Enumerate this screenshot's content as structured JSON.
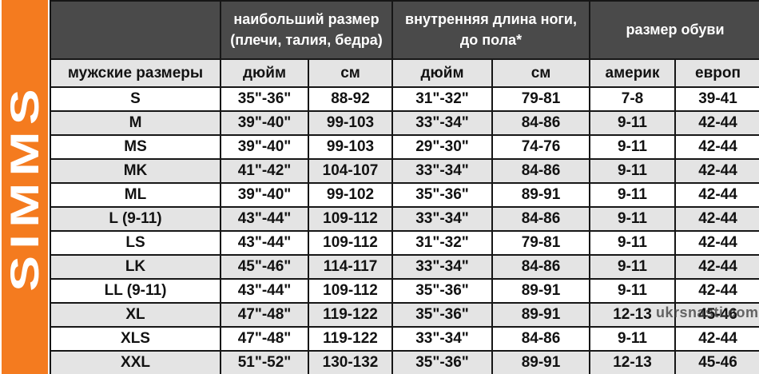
{
  "brand": {
    "logo_text": "SIMMS"
  },
  "watermark": "ukrsnasti.com",
  "colors": {
    "orange": "#f47b1f",
    "header_bg": "#4a4a4a",
    "header_text": "#ffffff",
    "row_alt_bg": "#e4e4e4",
    "row_bg": "#ffffff",
    "border": "#161616",
    "text": "#121212",
    "watermark_color": "#3e3e3e"
  },
  "table": {
    "group_headers": [
      {
        "label": "наибольший размер (плечи, талия, бедра)"
      },
      {
        "label": "внутренняя длина ноги, до пола*"
      },
      {
        "label": "размер обуви"
      }
    ],
    "sub_headers": [
      "мужские размеры",
      "дюйм",
      "см",
      "дюйм",
      "см",
      "америк",
      "европ"
    ],
    "rows": [
      [
        "S",
        "35\"-36\"",
        "88-92",
        "31\"-32\"",
        "79-81",
        "7-8",
        "39-41"
      ],
      [
        "M",
        "39\"-40\"",
        "99-103",
        "33\"-34\"",
        "84-86",
        "9-11",
        "42-44"
      ],
      [
        "MS",
        "39\"-40\"",
        "99-103",
        "29\"-30\"",
        "74-76",
        "9-11",
        "42-44"
      ],
      [
        "MK",
        "41\"-42\"",
        "104-107",
        "33\"-34\"",
        "84-86",
        "9-11",
        "42-44"
      ],
      [
        "ML",
        "39\"-40\"",
        "99-102",
        "35\"-36\"",
        "89-91",
        "9-11",
        "42-44"
      ],
      [
        "L (9-11)",
        "43\"-44\"",
        "109-112",
        "33\"-34\"",
        "84-86",
        "9-11",
        "42-44"
      ],
      [
        "LS",
        "43\"-44\"",
        "109-112",
        "31\"-32\"",
        "79-81",
        "9-11",
        "42-44"
      ],
      [
        "LK",
        "45\"-46\"",
        "114-117",
        "33\"-34\"",
        "84-86",
        "9-11",
        "42-44"
      ],
      [
        "LL (9-11)",
        "43\"-44\"",
        "109-112",
        "35\"-36\"",
        "89-91",
        "9-11",
        "42-44"
      ],
      [
        "XL",
        "47\"-48\"",
        "119-122",
        "35\"-36\"",
        "89-91",
        "12-13",
        "45-46"
      ],
      [
        "XLS",
        "47\"-48\"",
        "119-122",
        "33\"-34\"",
        "84-86",
        "9-11",
        "42-44"
      ],
      [
        "XXL",
        "51\"-52\"",
        "130-132",
        "35\"-36\"",
        "89-91",
        "12-13",
        "45-46"
      ]
    ]
  }
}
